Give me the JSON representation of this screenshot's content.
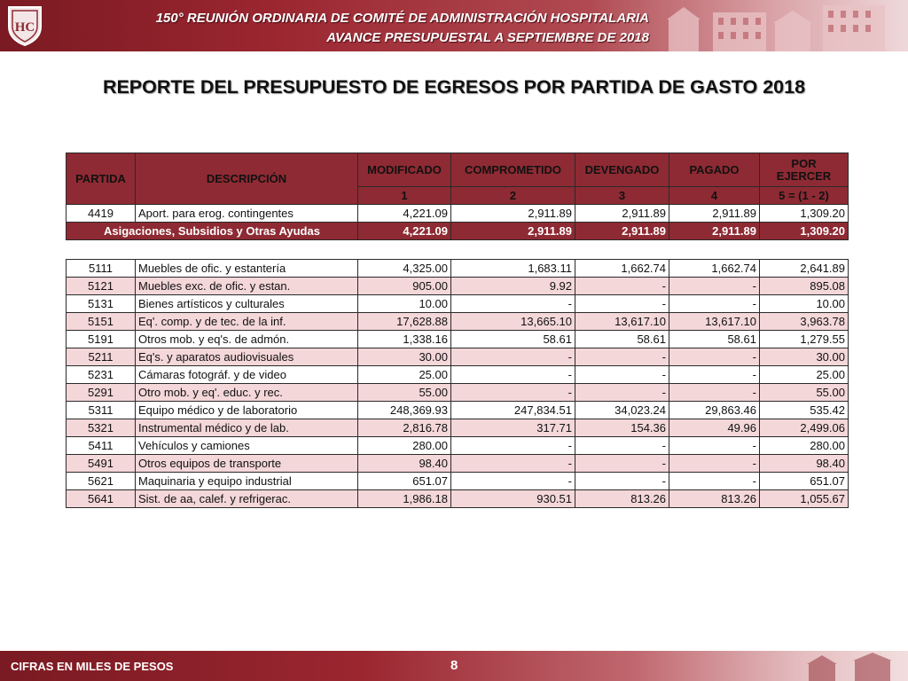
{
  "header": {
    "line1": "150° REUNIÓN ORDINARIA DE COMITÉ DE ADMINISTRACIÓN HOSPITALARIA",
    "line2": "AVANCE PRESUPUESTAL A  SEPTIEMBRE DE 2018",
    "logo_icon": "hospital-crest-icon",
    "brand_color": "#8e2a33"
  },
  "title": "REPORTE DEL PRESUPUESTO DE EGRESOS POR PARTIDA DE GASTO 2018",
  "table_headers": {
    "partida": "PARTIDA",
    "descripcion": "DESCRIPCIÓN",
    "modificado": "MODIFICADO",
    "comprometido": "COMPROMETIDO",
    "devengado": "DEVENGADO",
    "pagado": "PAGADO",
    "por_ejercer_1": "POR",
    "por_ejercer_2": "EJERCER",
    "col_num_1": "1",
    "col_num_2": "2",
    "col_num_3": "3",
    "col_num_4": "4",
    "col_num_5": "5 = (1 - 2)"
  },
  "group1": {
    "rows": [
      {
        "partida": "4419",
        "descripcion": "Aport. para erog. contingentes",
        "modificado": "4,221.09",
        "comprometido": "2,911.89",
        "devengado": "2,911.89",
        "pagado": "2,911.89",
        "por_ejercer": "1,309.20"
      }
    ],
    "subtotal": {
      "label": "Asigaciones, Subsidios y Otras Ayudas",
      "modificado": "4,221.09",
      "comprometido": "2,911.89",
      "devengado": "2,911.89",
      "pagado": "2,911.89",
      "por_ejercer": "1,309.20"
    }
  },
  "group2": {
    "rows": [
      {
        "partida": "5111",
        "descripcion": "Muebles de ofic. y estantería",
        "modificado": "4,325.00",
        "comprometido": "1,683.11",
        "devengado": "1,662.74",
        "pagado": "1,662.74",
        "por_ejercer": "2,641.89"
      },
      {
        "partida": "5121",
        "descripcion": "Muebles exc. de ofic. y estan.",
        "modificado": "905.00",
        "comprometido": "9.92",
        "devengado": "-",
        "pagado": "-",
        "por_ejercer": "895.08"
      },
      {
        "partida": "5131",
        "descripcion": "Bienes artísticos y culturales",
        "modificado": "10.00",
        "comprometido": "-",
        "devengado": "-",
        "pagado": "-",
        "por_ejercer": "10.00"
      },
      {
        "partida": "5151",
        "descripcion": "Eq'. comp. y de tec. de la inf.",
        "modificado": "17,628.88",
        "comprometido": "13,665.10",
        "devengado": "13,617.10",
        "pagado": "13,617.10",
        "por_ejercer": "3,963.78"
      },
      {
        "partida": "5191",
        "descripcion": "Otros mob. y eq's. de admón.",
        "modificado": "1,338.16",
        "comprometido": "58.61",
        "devengado": "58.61",
        "pagado": "58.61",
        "por_ejercer": "1,279.55"
      },
      {
        "partida": "5211",
        "descripcion": "Eq's. y aparatos audiovisuales",
        "modificado": "30.00",
        "comprometido": "-",
        "devengado": "-",
        "pagado": "-",
        "por_ejercer": "30.00"
      },
      {
        "partida": "5231",
        "descripcion": "Cámaras fotográf. y de video",
        "modificado": "25.00",
        "comprometido": "-",
        "devengado": "-",
        "pagado": "-",
        "por_ejercer": "25.00"
      },
      {
        "partida": "5291",
        "descripcion": "Otro mob. y eq'. educ. y rec.",
        "modificado": "55.00",
        "comprometido": "-",
        "devengado": "-",
        "pagado": "-",
        "por_ejercer": "55.00"
      },
      {
        "partida": "5311",
        "descripcion": "Equipo médico y de laboratorio",
        "modificado": "248,369.93",
        "comprometido": "247,834.51",
        "devengado": "34,023.24",
        "pagado": "29,863.46",
        "por_ejercer": "535.42"
      },
      {
        "partida": "5321",
        "descripcion": "Instrumental médico y de lab.",
        "modificado": "2,816.78",
        "comprometido": "317.71",
        "devengado": "154.36",
        "pagado": "49.96",
        "por_ejercer": "2,499.06"
      },
      {
        "partida": "5411",
        "descripcion": "Vehículos y camiones",
        "modificado": "280.00",
        "comprometido": "-",
        "devengado": "-",
        "pagado": "-",
        "por_ejercer": "280.00"
      },
      {
        "partida": "5491",
        "descripcion": "Otros equipos de transporte",
        "modificado": "98.40",
        "comprometido": "-",
        "devengado": "-",
        "pagado": "-",
        "por_ejercer": "98.40"
      },
      {
        "partida": "5621",
        "descripcion": "Maquinaria y equipo industrial",
        "modificado": "651.07",
        "comprometido": "-",
        "devengado": "-",
        "pagado": "-",
        "por_ejercer": "651.07"
      },
      {
        "partida": "5641",
        "descripcion": "Sist. de aa, calef. y refrigerac.",
        "modificado": "1,986.18",
        "comprometido": "930.51",
        "devengado": "813.26",
        "pagado": "813.26",
        "por_ejercer": "1,055.67"
      }
    ]
  },
  "footer": {
    "note": "CIFRAS EN MILES DE PESOS",
    "page_number": "8"
  }
}
